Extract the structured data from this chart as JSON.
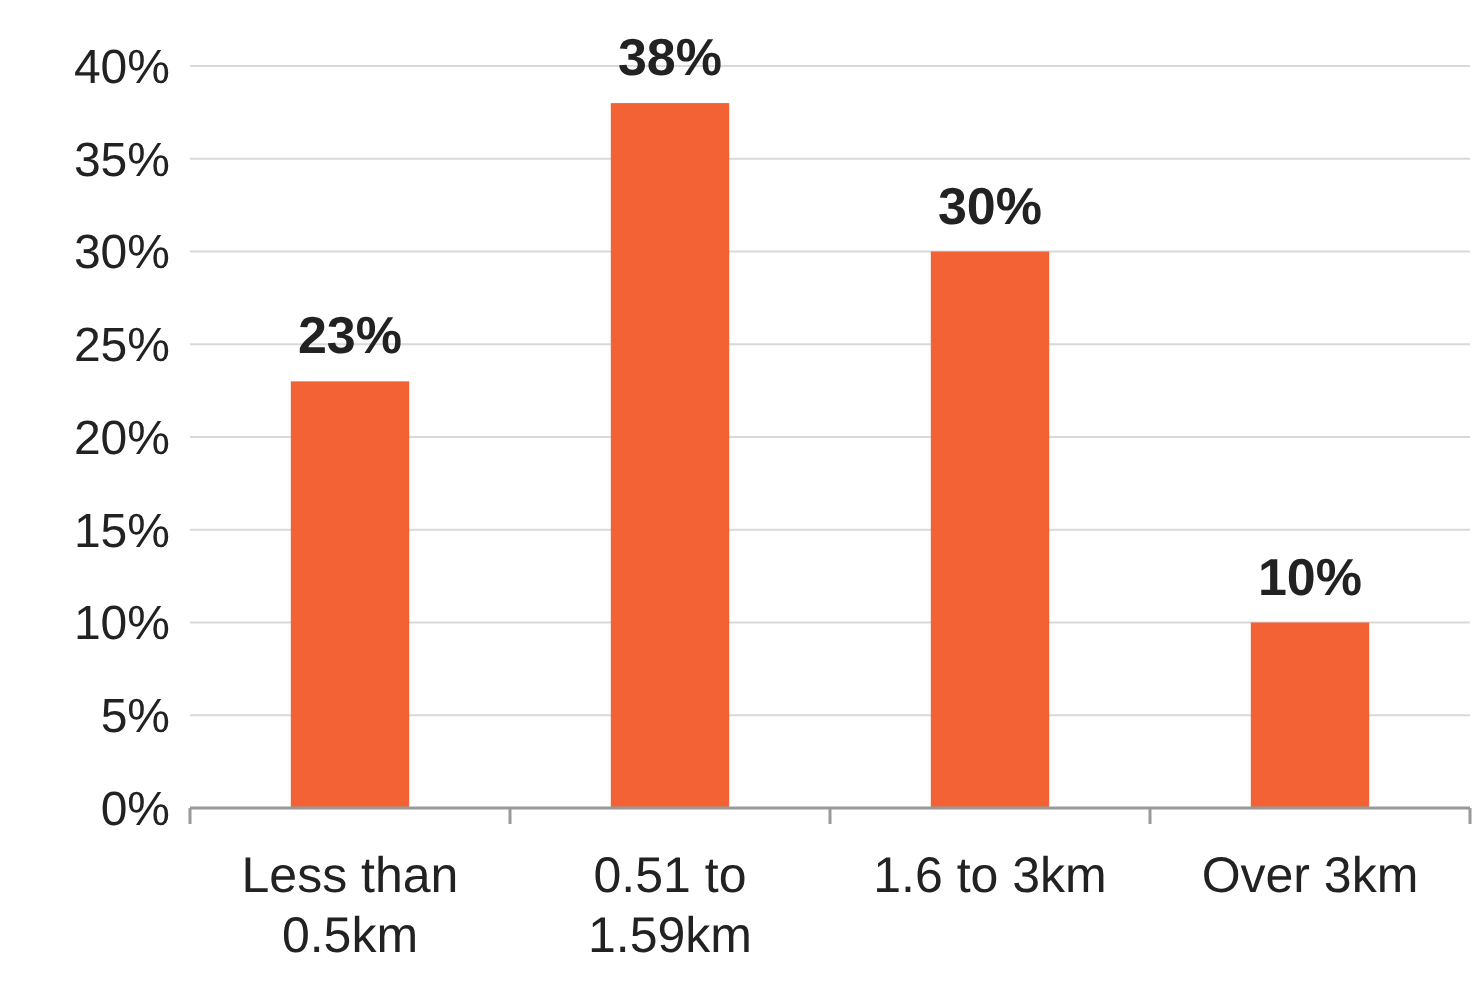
{
  "chart_data": {
    "type": "bar",
    "categories": [
      "Less than 0.5km",
      "0.51 to 1.59km",
      "1.6 to 3km",
      "Over 3km"
    ],
    "values": [
      23,
      38,
      30,
      10
    ],
    "value_labels": [
      "23%",
      "38%",
      "30%",
      "10%"
    ],
    "color": "#f26235",
    "ylim": [
      0,
      40
    ],
    "yticks": [
      {
        "value": 0,
        "label": "0%"
      },
      {
        "value": 5,
        "label": "5%"
      },
      {
        "value": 10,
        "label": "10%"
      },
      {
        "value": 15,
        "label": "15%"
      },
      {
        "value": 20,
        "label": "20%"
      },
      {
        "value": 25,
        "label": "25%"
      },
      {
        "value": 30,
        "label": "30%"
      },
      {
        "value": 35,
        "label": "35%"
      },
      {
        "value": 40,
        "label": "40%"
      }
    ],
    "grid": "y"
  }
}
